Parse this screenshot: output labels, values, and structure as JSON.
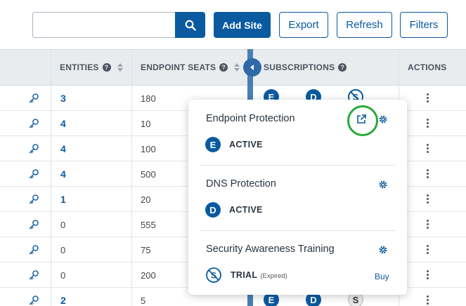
{
  "toolbar": {
    "search_placeholder": "",
    "search_value": "",
    "add_site_label": "Add Site",
    "export_label": "Export",
    "refresh_label": "Refresh",
    "filters_label": "Filters"
  },
  "table": {
    "headers": {
      "entities": "ENTITIES",
      "endpoint_seats": "ENDPOINT SEATS",
      "subscriptions": "SUBSCRIPTIONS",
      "actions": "ACTIONS"
    },
    "rows": [
      {
        "entities": "3",
        "entities_link": true,
        "seats": "180"
      },
      {
        "entities": "4",
        "entities_link": true,
        "seats": "10"
      },
      {
        "entities": "4",
        "entities_link": true,
        "seats": "100"
      },
      {
        "entities": "4",
        "entities_link": true,
        "seats": "500"
      },
      {
        "entities": "1",
        "entities_link": true,
        "seats": "20"
      },
      {
        "entities": "0",
        "entities_link": false,
        "seats": "555"
      },
      {
        "entities": "0",
        "entities_link": false,
        "seats": "75"
      },
      {
        "entities": "0",
        "entities_link": false,
        "seats": "200"
      },
      {
        "entities": "2",
        "entities_link": true,
        "seats": "5"
      }
    ]
  },
  "subscription_badges": {
    "endpoint": "E",
    "dns": "D",
    "security_training": "S"
  },
  "popover": {
    "endpoint": {
      "title": "Endpoint Protection",
      "badge": "E",
      "status": "ACTIVE"
    },
    "dns": {
      "title": "DNS Protection",
      "badge": "D",
      "status": "ACTIVE"
    },
    "sat": {
      "title": "Security Awareness Training",
      "status": "TRIAL",
      "status_note": "(Expired)",
      "buy_label": "Buy"
    }
  },
  "colors": {
    "brand_blue": "#0a5aa0",
    "highlight_green": "#2aa83a"
  },
  "icons": [
    "search-icon",
    "help-icon",
    "sort-icon",
    "key-icon",
    "kebab-icon",
    "collapse-arrow-icon",
    "external-link-icon",
    "gear-icon",
    "no-training-icon"
  ]
}
